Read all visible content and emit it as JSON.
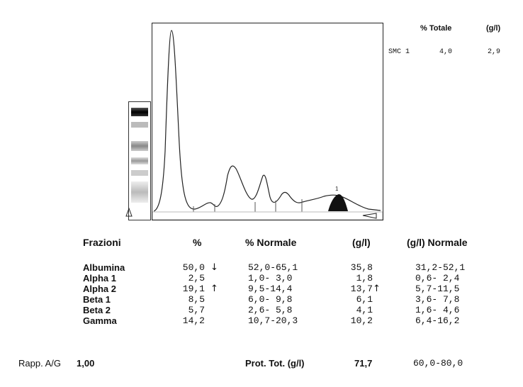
{
  "smc_header": {
    "pct_label": "% Totale",
    "gl_label": "(g/l)"
  },
  "smc_row": {
    "name": "SMC 1",
    "pct": "4,0",
    "gl": "2,9"
  },
  "peak_marker": "1",
  "table_headers": {
    "fraction": "Frazioni",
    "pct": "%",
    "pct_normal": "% Normale",
    "gl": "(g/l)",
    "gl_normal": "(g/l) Normale"
  },
  "fractions": [
    {
      "name": "Albumina",
      "pct": "50,0",
      "pct_flag": "↓",
      "pct_normal": "52,0-65,1",
      "gl": "35,8",
      "gl_flag": "",
      "gl_normal": "31,2-52,1"
    },
    {
      "name": "Alpha 1",
      "pct": "2,5",
      "pct_flag": "",
      "pct_normal": "1,0- 3,0",
      "gl": "1,8",
      "gl_flag": "",
      "gl_normal": "0,6- 2,4"
    },
    {
      "name": "Alpha 2",
      "pct": "19,1",
      "pct_flag": "↑",
      "pct_normal": "9,5-14,4",
      "gl": "13,7",
      "gl_flag": "↑",
      "gl_normal": "5,7-11,5"
    },
    {
      "name": "Beta 1",
      "pct": "8,5",
      "pct_flag": "",
      "pct_normal": "6,0- 9,8",
      "gl": "6,1",
      "gl_flag": "",
      "gl_normal": "3,6- 7,8"
    },
    {
      "name": "Beta 2",
      "pct": "5,7",
      "pct_flag": "",
      "pct_normal": "2,6- 5,8",
      "gl": "4,1",
      "gl_flag": "",
      "gl_normal": "1,6- 4,6"
    },
    {
      "name": "Gamma",
      "pct": "14,2",
      "pct_flag": "",
      "pct_normal": "10,7-20,3",
      "gl": "10,2",
      "gl_flag": "",
      "gl_normal": "6,4-16,2"
    }
  ],
  "footer": {
    "ag_label": "Rapp. A/G",
    "ag_value": "1,00",
    "prot_label": "Prot. Tot. (g/l)",
    "prot_value": "71,7",
    "prot_normal": "60,0-80,0"
  },
  "colors": {
    "line": "#222222",
    "fill": "#111111",
    "baseline": "#bbbbbb"
  }
}
